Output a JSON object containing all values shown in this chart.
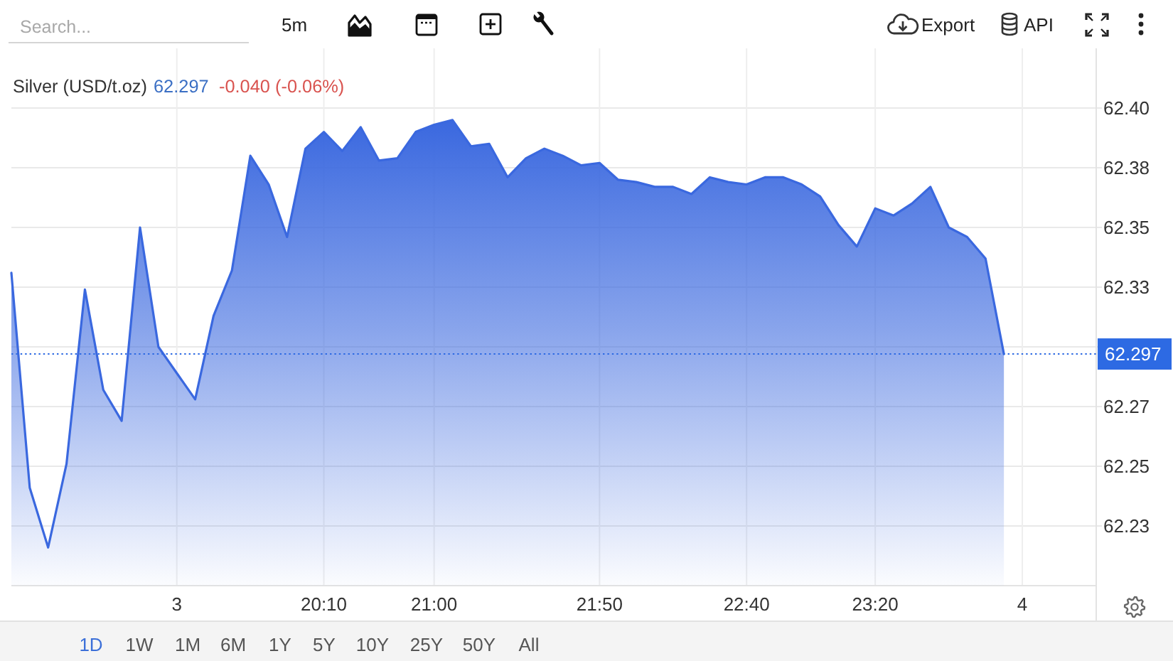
{
  "chart_data": {
    "type": "area",
    "title": "Silver (USD/t.oz)",
    "annotations": [
      "62.297",
      "-0.040 (-0.06%)",
      "Search...",
      "5m",
      "Export",
      "API",
      "1D",
      "1W",
      "1M",
      "6M",
      "1Y",
      "5Y",
      "10Y",
      "25Y",
      "50Y",
      "All"
    ],
    "categories": [
      null,
      null,
      null,
      null,
      null,
      null,
      null,
      null,
      null,
      "3",
      null,
      null,
      null,
      null,
      null,
      null,
      null,
      "20:10",
      null,
      null,
      null,
      null,
      null,
      "21:00",
      null,
      null,
      null,
      null,
      null,
      null,
      null,
      null,
      "21:50",
      null,
      null,
      null,
      null,
      null,
      null,
      null,
      "22:40",
      null,
      null,
      null,
      null,
      null,
      null,
      "23:20",
      null,
      null,
      null,
      null,
      null,
      null,
      null,
      "4"
    ],
    "values": [
      62.331,
      62.241,
      62.216,
      62.251,
      62.324,
      62.282,
      62.269,
      62.35,
      62.3,
      62.289,
      62.278,
      62.313,
      62.332,
      62.38,
      62.368,
      62.346,
      62.383,
      62.39,
      62.382,
      62.392,
      62.378,
      62.379,
      62.39,
      62.393,
      62.395,
      62.384,
      62.385,
      62.371,
      62.379,
      62.383,
      62.38,
      62.376,
      62.377,
      62.37,
      62.369,
      62.367,
      62.367,
      62.364,
      62.371,
      62.369,
      62.368,
      62.371,
      62.371,
      62.368,
      62.363,
      62.351,
      62.342,
      62.358,
      62.355,
      62.36,
      62.367,
      62.35,
      62.346,
      62.337,
      62.297,
      null
    ],
    "color": "#3a68df",
    "ylim": [
      62.2,
      62.425
    ],
    "yticks": [
      {
        "value": 62.225,
        "label": "62.23"
      },
      62.25,
      {
        "value": 62.275,
        "label": "62.27"
      },
      {
        "value": 62.3,
        "label": null
      },
      {
        "value": 62.325,
        "label": "62.33"
      },
      62.35,
      {
        "value": 62.375,
        "label": "62.38"
      },
      {
        "value": 62.4,
        "label": "62.40"
      }
    ],
    "grid": true,
    "ref_lines": [
      {
        "axis": "y",
        "value": 62.297,
        "label": "62.297",
        "color": "#2d6ae3",
        "line_style": "dotted"
      }
    ]
  }
}
